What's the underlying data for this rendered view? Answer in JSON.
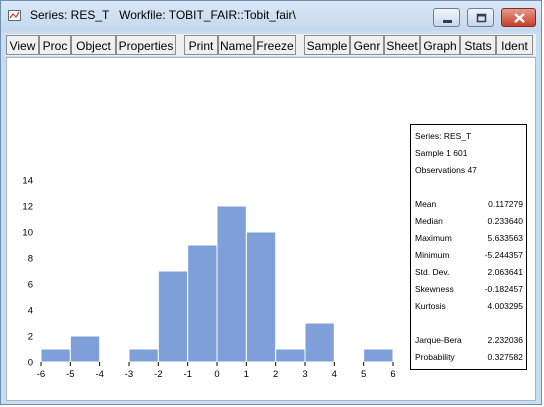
{
  "window": {
    "title": "Series: RES_T   Workfile: TOBIT_FAIR::Tobit_fair\\"
  },
  "toolbar": [
    {
      "label": "View"
    },
    {
      "label": "Proc"
    },
    {
      "label": "Object"
    },
    {
      "label": "Properties"
    },
    {
      "label": "Print"
    },
    {
      "label": "Name"
    },
    {
      "label": "Freeze"
    },
    {
      "label": "Sample"
    },
    {
      "label": "Genr"
    },
    {
      "label": "Sheet"
    },
    {
      "label": "Graph"
    },
    {
      "label": "Stats"
    },
    {
      "label": "Ident"
    }
  ],
  "chart_data": {
    "type": "bar",
    "bin_edges": [
      -6,
      -5,
      -4,
      -3,
      -2,
      -1,
      0,
      1,
      2,
      3,
      4,
      5,
      6
    ],
    "values": [
      1,
      2,
      0,
      1,
      7,
      9,
      12,
      10,
      1,
      3,
      0,
      1
    ],
    "xticks": [
      "-6",
      "-5",
      "-4",
      "-3",
      "-2",
      "-1",
      "0",
      "1",
      "2",
      "3",
      "4",
      "5",
      "6"
    ],
    "yticks": [
      "0",
      "2",
      "4",
      "6",
      "8",
      "10",
      "12",
      "14"
    ],
    "ylim": [
      0,
      14
    ],
    "xlim": [
      -6,
      6
    ],
    "bar_color": "#7f9fd8"
  },
  "stats": {
    "series": "Series: RES_T",
    "sample": "Sample 1 601",
    "observations": "Observations 47",
    "rows": [
      {
        "label": "Mean",
        "value": "0.117279"
      },
      {
        "label": "Median",
        "value": "0.233640"
      },
      {
        "label": "Maximum",
        "value": "5.633563"
      },
      {
        "label": "Minimum",
        "value": "-5.244357"
      },
      {
        "label": "Std. Dev.",
        "value": "2.063641"
      },
      {
        "label": "Skewness",
        "value": "-0.182457"
      },
      {
        "label": "Kurtosis",
        "value": "4.003295"
      },
      {
        "label": "Jarque-Bera",
        "value": "2.232036"
      },
      {
        "label": "Probability",
        "value": "0.327582"
      }
    ]
  }
}
